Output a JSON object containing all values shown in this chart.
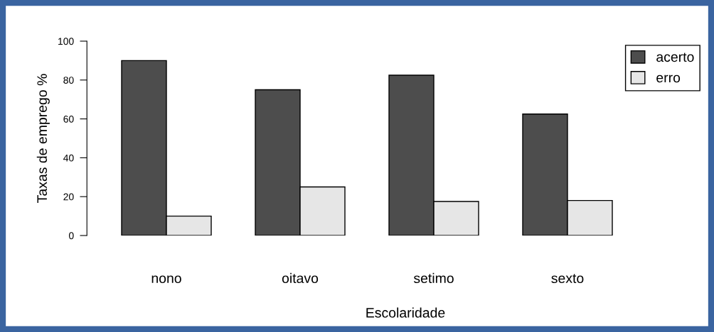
{
  "chart_data": {
    "type": "bar",
    "xlabel": "Escolaridade",
    "ylabel": "Taxas de emprego %",
    "categories": [
      "nono",
      "oitavo",
      "setimo",
      "sexto"
    ],
    "series": [
      {
        "name": "acerto",
        "color": "#4d4d4d",
        "values": [
          90,
          75,
          82.5,
          62.5
        ]
      },
      {
        "name": "erro",
        "color": "#e6e6e6",
        "values": [
          10,
          25,
          17.5,
          18
        ]
      }
    ],
    "ylim": [
      0,
      100
    ],
    "yticks": [
      0,
      20,
      40,
      60,
      80,
      100
    ],
    "grid": false,
    "legend": "top right"
  }
}
